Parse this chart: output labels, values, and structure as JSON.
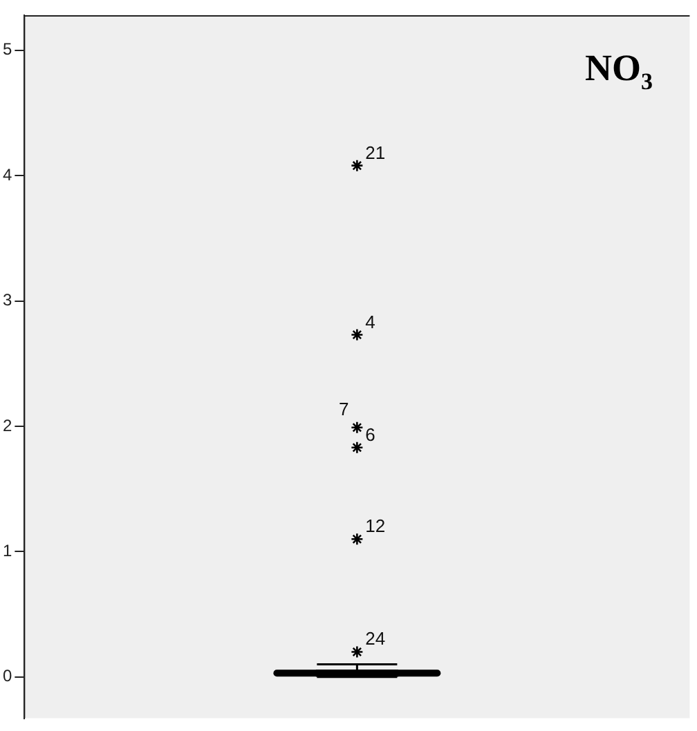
{
  "chart_data": {
    "type": "box",
    "title": "NO$_{3}$",
    "categories": [
      null
    ],
    "series": [
      {
        "color": "#000000",
        "boxes": [
          {
            "low": 0,
            "q1": 0.01,
            "median": 0.03,
            "q3": 0.05,
            "high": 0.1,
            "outliers": [
              4.08,
              2.73,
              1.83,
              1.99,
              1.1,
              0.2
            ]
          }
        ]
      }
    ],
    "ylim": [
      -0.33,
      5.28
    ],
    "yticks": [
      0,
      1,
      2,
      3,
      4,
      5
    ],
    "grid": false,
    "legend": false,
    "tick_labels": "y",
    "marker": "star",
    "annotations": [
      "21",
      "4",
      "6",
      "7",
      "12",
      "24"
    ]
  }
}
